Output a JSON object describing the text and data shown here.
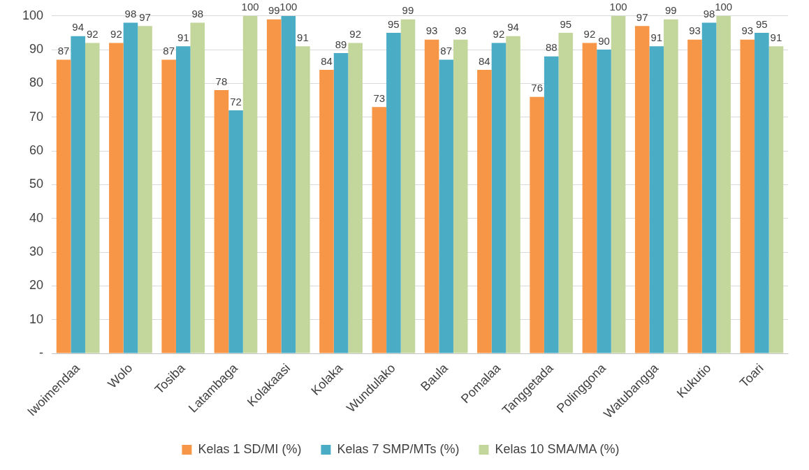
{
  "chart_data": {
    "type": "bar",
    "categories": [
      "Iwoimendaa",
      "Wolo",
      "Tosiba",
      "Latambaga",
      "Kolakaasi",
      "Kolaka",
      "Wundulako",
      "Baula",
      "Pomalaa",
      "Tanggetada",
      "Polinggona",
      "Watubangga",
      "Kukutio",
      "Toari"
    ],
    "series": [
      {
        "name": "Kelas 1 SD/MI (%)",
        "color": "#f79646",
        "values": [
          87,
          92,
          87,
          78,
          99,
          84,
          73,
          93,
          84,
          76,
          92,
          97,
          93,
          93
        ]
      },
      {
        "name": "Kelas 7 SMP/MTs (%)",
        "color": "#4bacc6",
        "values": [
          94,
          98,
          91,
          72,
          100,
          89,
          95,
          87,
          92,
          88,
          90,
          91,
          98,
          95
        ]
      },
      {
        "name": "Kelas 10 SMA/MA (%)",
        "color": "#c3d69b",
        "values": [
          92,
          97,
          98,
          100,
          91,
          92,
          99,
          93,
          94,
          95,
          100,
          99,
          100,
          91
        ]
      }
    ],
    "ylim": [
      0,
      100
    ],
    "yticks": [
      {
        "value": 0,
        "label": "-"
      },
      10,
      20,
      30,
      40,
      50,
      60,
      70,
      80,
      90,
      100
    ],
    "grid": "y",
    "legend": "bottom",
    "data_labels": true
  }
}
